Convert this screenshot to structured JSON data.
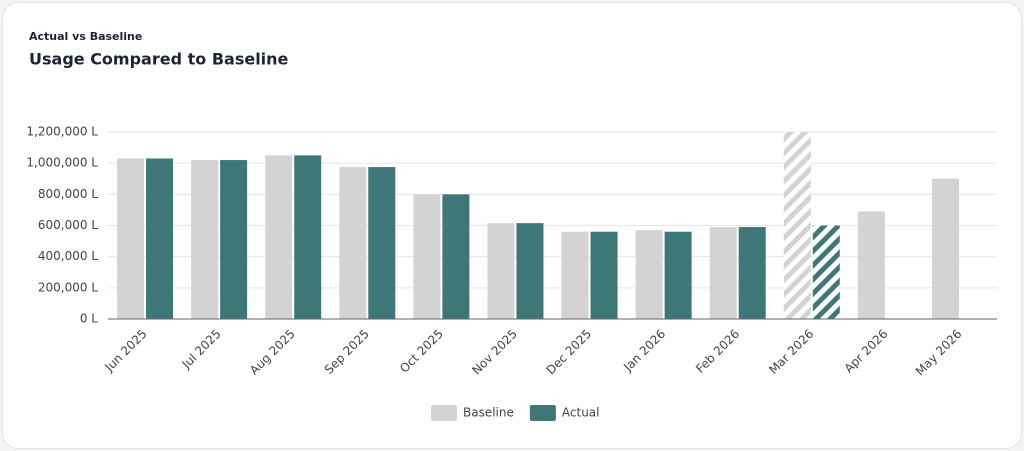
{
  "chart_data": {
    "type": "bar",
    "subtitle": "Actual vs Baseline",
    "title": "Usage Compared to Baseline",
    "categories": [
      "Jun 2025",
      "Jul 2025",
      "Aug 2025",
      "Sep 2025",
      "Oct 2025",
      "Nov 2025",
      "Dec 2025",
      "Jan 2026",
      "Feb 2026",
      "Mar 2026",
      "Apr 2026",
      "May 2026"
    ],
    "series": [
      {
        "name": "Baseline",
        "color": "#d3d3d3",
        "values": [
          1030000,
          1020000,
          1050000,
          975000,
          800000,
          615000,
          560000,
          570000,
          590000,
          1200000,
          690000,
          900000
        ],
        "hatched": [
          9
        ]
      },
      {
        "name": "Actual",
        "color": "#3d7778",
        "values": [
          1030000,
          1020000,
          1050000,
          975000,
          800000,
          615000,
          560000,
          560000,
          590000,
          600000,
          null,
          null
        ],
        "hatched": [
          9
        ]
      }
    ],
    "ylim": [
      0,
      1200000
    ],
    "yticks": [
      {
        "value": 0,
        "label": "0 L"
      },
      {
        "value": 200000,
        "label": "200,000 L"
      },
      {
        "value": 400000,
        "label": "400,000 L"
      },
      {
        "value": 600000,
        "label": "600,000 L"
      },
      {
        "value": 800000,
        "label": "800,000 L"
      },
      {
        "value": 1000000,
        "label": "1,000,000 L"
      },
      {
        "value": 1200000,
        "label": "1,200,000 L"
      }
    ],
    "grid": true,
    "legend": "bottom"
  }
}
